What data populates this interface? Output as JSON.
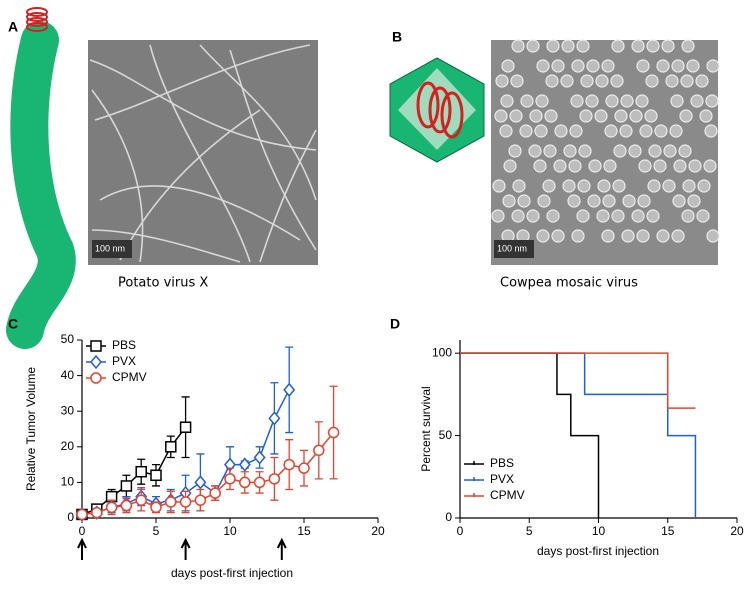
{
  "panels": {
    "A": {
      "label": "A",
      "scale_bar": "100 nm",
      "caption": "Potato virus X"
    },
    "B": {
      "label": "B",
      "scale_bar": "100 nm",
      "caption": "Cowpea mosaic virus"
    }
  },
  "chart_data": [
    {
      "type": "line",
      "label": "C",
      "ylabel": "Relative Tumor Volume",
      "xlabel": "days post-first injection",
      "xlim": [
        0,
        20
      ],
      "ylim": [
        0,
        50
      ],
      "xticks": [
        0,
        5,
        10,
        15,
        20
      ],
      "yticks": [
        0,
        10,
        20,
        30,
        40,
        50
      ],
      "legend": "upper left",
      "arrows_x": [
        0,
        7,
        13.5
      ],
      "series": [
        {
          "name": "PBS",
          "color": "#000000",
          "marker": "square",
          "x": [
            0,
            1,
            2,
            3,
            4,
            5,
            6,
            7
          ],
          "values": [
            1,
            2.5,
            6,
            9,
            13,
            12,
            20,
            25.5
          ],
          "errors": [
            0.5,
            1,
            2,
            3,
            3.5,
            3,
            3,
            8.5
          ]
        },
        {
          "name": "PVX",
          "color": "#1f5fd6",
          "marker": "diamond",
          "x": [
            0,
            1,
            2,
            3,
            4,
            5,
            6,
            7,
            8,
            9,
            10,
            11,
            12,
            13,
            14
          ],
          "values": [
            1,
            1.5,
            3,
            4,
            6,
            4,
            5,
            7,
            10,
            7,
            15,
            15,
            17,
            28,
            36
          ],
          "errors": [
            0.5,
            1,
            1.5,
            2,
            2.5,
            2,
            3,
            5,
            8,
            2,
            5,
            1,
            3,
            10,
            12
          ]
        },
        {
          "name": "CPMV",
          "color": "#e8432f",
          "marker": "circle",
          "x": [
            0,
            1,
            2,
            3,
            4,
            5,
            6,
            7,
            8,
            9,
            10,
            11,
            12,
            13,
            14,
            15,
            16,
            17
          ],
          "values": [
            1,
            1.5,
            3,
            3.5,
            5,
            3,
            4.5,
            4.5,
            5,
            7,
            11,
            10,
            10,
            11,
            15,
            14,
            19,
            24
          ],
          "errors": [
            0.5,
            1,
            2,
            2,
            3,
            1.5,
            3,
            3,
            3,
            2,
            3,
            3,
            3,
            6,
            7,
            5,
            8,
            13
          ]
        }
      ]
    },
    {
      "type": "step",
      "label": "D",
      "ylabel": "Percent survival",
      "xlabel": "days post-first injection",
      "xlim": [
        0,
        20
      ],
      "ylim": [
        0,
        108
      ],
      "xticks": [
        0,
        5,
        10,
        15,
        20
      ],
      "yticks": [
        0,
        50,
        100
      ],
      "legend": "lower left",
      "series": [
        {
          "name": "PBS",
          "color": "#000000",
          "x": [
            0,
            7,
            8,
            10
          ],
          "values": [
            100,
            75,
            50,
            0
          ]
        },
        {
          "name": "PVX",
          "color": "#1f5fd6",
          "x": [
            0,
            9,
            15,
            17
          ],
          "values": [
            100,
            75,
            50,
            0
          ]
        },
        {
          "name": "CPMV",
          "color": "#e8432f",
          "x": [
            0,
            15,
            17
          ],
          "values": [
            100,
            66.7,
            66.7
          ]
        }
      ]
    }
  ]
}
